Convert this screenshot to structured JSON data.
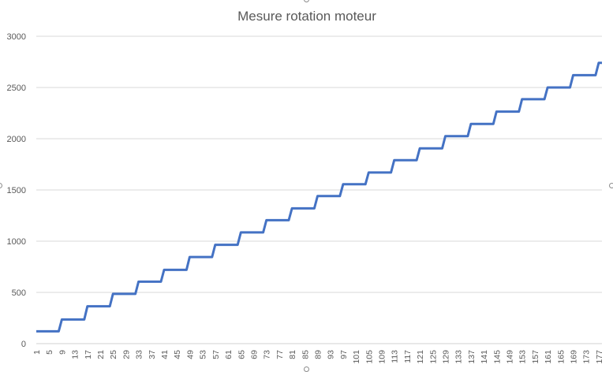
{
  "chart_data": {
    "type": "line",
    "title": "Mesure rotation moteur",
    "xlabel": "",
    "ylabel": "",
    "ylim": [
      0,
      3000
    ],
    "yticks": [
      0,
      500,
      1000,
      1500,
      2000,
      2500,
      3000
    ],
    "xticks": [
      1,
      5,
      9,
      13,
      17,
      21,
      25,
      29,
      33,
      37,
      41,
      45,
      49,
      53,
      57,
      61,
      65,
      69,
      73,
      77,
      81,
      85,
      89,
      93,
      97,
      101,
      105,
      109,
      113,
      117,
      121,
      125,
      129,
      133,
      137,
      141,
      145,
      149,
      153,
      157,
      161,
      165,
      169,
      173,
      177
    ],
    "grid": true,
    "legend": "none",
    "color": "#4472c4",
    "x": [
      1,
      8,
      9,
      16,
      17,
      24,
      25,
      32,
      33,
      40,
      41,
      48,
      49,
      56,
      57,
      64,
      65,
      72,
      73,
      80,
      81,
      88,
      89,
      96,
      97,
      104,
      105,
      112,
      113,
      120,
      121,
      128,
      129,
      136,
      137,
      144,
      145,
      152,
      153,
      160,
      161,
      168,
      169,
      176,
      177,
      178
    ],
    "y": [
      120,
      120,
      235,
      235,
      365,
      365,
      485,
      485,
      605,
      605,
      720,
      720,
      845,
      845,
      965,
      965,
      1085,
      1085,
      1205,
      1205,
      1320,
      1320,
      1440,
      1440,
      1555,
      1555,
      1670,
      1670,
      1790,
      1790,
      1905,
      1905,
      2025,
      2025,
      2145,
      2145,
      2265,
      2265,
      2385,
      2385,
      2500,
      2500,
      2620,
      2620,
      2740,
      2740
    ]
  }
}
